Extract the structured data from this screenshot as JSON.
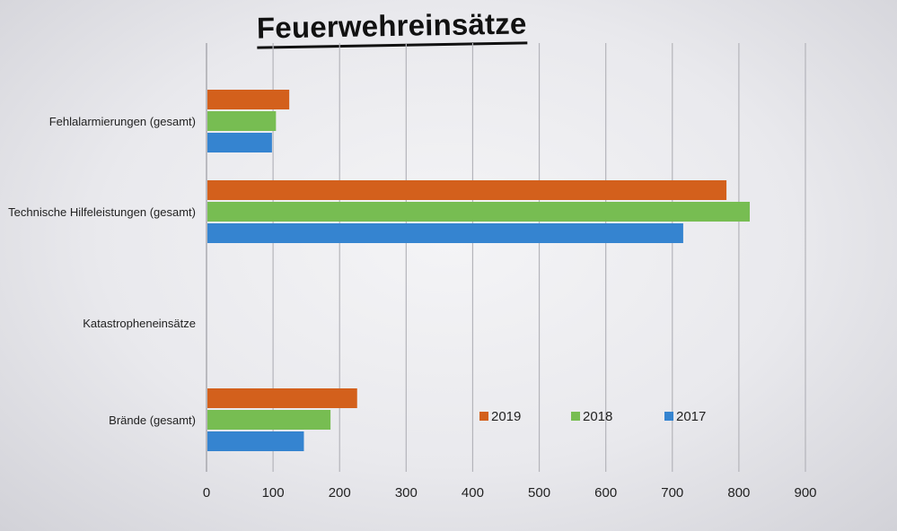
{
  "chart_data": {
    "type": "bar",
    "orientation": "horizontal",
    "title": "Feuerwehreinsätze",
    "categories": [
      "Fehlalarmierungen (gesamt)",
      "Technische Hilfeleistungen (gesamt)",
      "Katastropheneinsätze",
      "Brände (gesamt)"
    ],
    "series": [
      {
        "name": "2019",
        "color": "#d3601c",
        "values": [
          123,
          780,
          0,
          225
        ]
      },
      {
        "name": "2018",
        "color": "#77bd52",
        "values": [
          103,
          815,
          0,
          185
        ]
      },
      {
        "name": "2017",
        "color": "#3584d0",
        "values": [
          97,
          715,
          0,
          145
        ]
      }
    ],
    "xlim": [
      0,
      900
    ],
    "x_ticks": [
      "0",
      "100",
      "200",
      "300",
      "400",
      "500",
      "600",
      "700",
      "800",
      "900"
    ],
    "grid": true,
    "legend_position": "lower-right"
  }
}
